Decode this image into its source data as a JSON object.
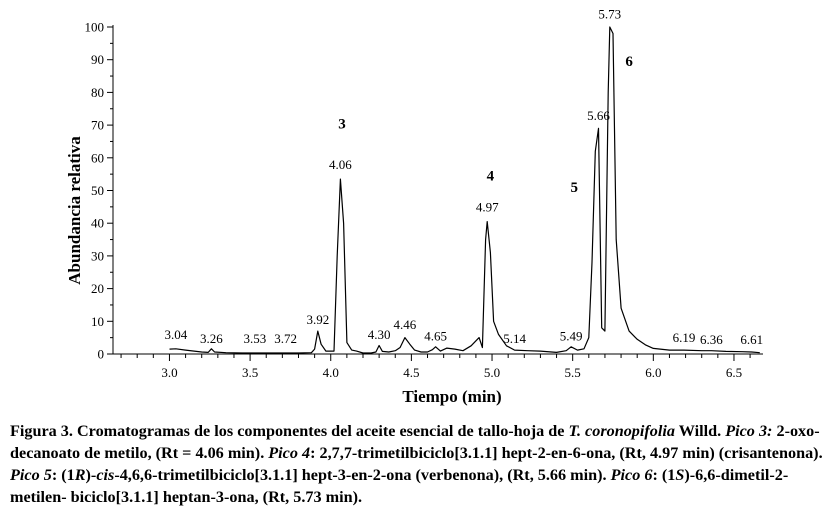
{
  "chart_data": {
    "type": "line",
    "xlabel": "Tiempo (min)",
    "ylabel": "Abundancia relativa",
    "xlim": [
      2.65,
      6.68
    ],
    "ylim": [
      0,
      100
    ],
    "xticks": [
      "3.0",
      "3.5",
      "4.0",
      "4.5",
      "5.0",
      "5.5",
      "6.0",
      "6.5"
    ],
    "yticks": [
      "0",
      "10",
      "20",
      "30",
      "40",
      "50",
      "60",
      "70",
      "80",
      "90",
      "100"
    ],
    "grid": false,
    "series": [
      {
        "x": [
          3.0,
          3.04,
          3.1,
          3.2,
          3.24,
          3.26,
          3.28,
          3.35,
          3.45,
          3.53,
          3.62,
          3.72,
          3.8,
          3.88,
          3.9,
          3.92,
          3.94,
          3.97,
          4.02,
          4.04,
          4.06,
          4.08,
          4.1,
          4.13,
          4.16,
          4.2,
          4.25,
          4.28,
          4.3,
          4.32,
          4.36,
          4.4,
          4.43,
          4.46,
          4.49,
          4.52,
          4.56,
          4.6,
          4.63,
          4.65,
          4.68,
          4.72,
          4.77,
          4.82,
          4.87,
          4.92,
          4.94,
          4.96,
          4.97,
          4.99,
          5.01,
          5.04,
          5.09,
          5.14,
          5.22,
          5.3,
          5.4,
          5.46,
          5.49,
          5.53,
          5.57,
          5.6,
          5.62,
          5.64,
          5.66,
          5.68,
          5.7,
          5.72,
          5.73,
          5.75,
          5.77,
          5.8,
          5.85,
          5.9,
          5.95,
          6.0,
          6.1,
          6.19,
          6.3,
          6.36,
          6.45,
          6.55,
          6.61,
          6.66
        ],
        "y": [
          1.5,
          1.6,
          1.2,
          0.6,
          0.5,
          1.6,
          0.6,
          0.4,
          0.3,
          0.3,
          0.3,
          0.3,
          0.3,
          0.4,
          1.5,
          7.0,
          3.0,
          0.9,
          0.9,
          30.0,
          53.5,
          40.0,
          3.5,
          1.2,
          0.9,
          0.3,
          0.3,
          0.6,
          2.6,
          0.8,
          0.6,
          1.0,
          2.0,
          5.0,
          3.0,
          1.2,
          0.6,
          0.6,
          1.3,
          2.2,
          0.9,
          1.8,
          1.5,
          1.0,
          2.5,
          5.0,
          2.0,
          35.0,
          40.5,
          31.0,
          10.0,
          6.0,
          2.5,
          1.2,
          1.0,
          0.9,
          0.5,
          1.0,
          2.2,
          1.2,
          1.6,
          5.0,
          28.0,
          62.0,
          69.0,
          8.0,
          7.0,
          80.0,
          100.0,
          98.0,
          35.0,
          14.0,
          7.0,
          4.5,
          2.8,
          1.7,
          1.2,
          1.2,
          1.0,
          1.0,
          0.8,
          0.7,
          0.6,
          0.4
        ]
      }
    ],
    "peak_labels": [
      {
        "text": "3.04",
        "x": 3.04,
        "y": 4.0
      },
      {
        "text": "3.26",
        "x": 3.26,
        "y": 2.8
      },
      {
        "text": "3.53",
        "x": 3.53,
        "y": 2.8
      },
      {
        "text": "3.72",
        "x": 3.72,
        "y": 2.8
      },
      {
        "text": "3.92",
        "x": 3.92,
        "y": 8.5
      },
      {
        "text": "4.06",
        "x": 4.06,
        "y": 56.0
      },
      {
        "text": "4.30",
        "x": 4.3,
        "y": 4.0
      },
      {
        "text": "4.46",
        "x": 4.46,
        "y": 7.0
      },
      {
        "text": "4.65",
        "x": 4.65,
        "y": 3.5
      },
      {
        "text": "4.97",
        "x": 4.97,
        "y": 43.0
      },
      {
        "text": "5.14",
        "x": 5.14,
        "y": 2.8
      },
      {
        "text": "5.49",
        "x": 5.49,
        "y": 3.5
      },
      {
        "text": "5.66",
        "x": 5.66,
        "y": 71.0
      },
      {
        "text": "5.73",
        "x": 5.73,
        "y": 102.0
      },
      {
        "text": "6.19",
        "x": 6.19,
        "y": 3.0
      },
      {
        "text": "6.36",
        "x": 6.36,
        "y": 2.5
      },
      {
        "text": "6.61",
        "x": 6.61,
        "y": 2.5
      }
    ],
    "peak_numbers": [
      {
        "text": "3",
        "x": 4.07,
        "y": 69.0
      },
      {
        "text": "4",
        "x": 4.99,
        "y": 53.0
      },
      {
        "text": "5",
        "x": 5.51,
        "y": 49.5
      },
      {
        "text": "6",
        "x": 5.85,
        "y": 88.0
      }
    ],
    "colors": {
      "line": "#000000",
      "axis": "#000000"
    }
  },
  "caption": {
    "fig_title": "Figura 3. Cromatogramas de los componentes del aceite esencial de tallo-hoja de ",
    "species": "T. coronopifolia",
    "author": " Willd.",
    "p3_label": "Pico 3:",
    "p3_text": " 2-oxo-decanoato de metilo, (Rt = 4.06 min). ",
    "p4_label": "Pico 4",
    "p4_text": ": 2,7,7-trimetilbiciclo[3.1.1] hept-2-en-6-ona, (Rt, 4.97 min) (crisantenona). ",
    "p5_label": "Pico 5",
    "p5_text_a": ": (1",
    "p5_r": "R",
    "p5_text_b": ")-",
    "p5_cis": "cis",
    "p5_text_c": "-4,6,6-trimetilbiciclo[3.1.1] hept-3-en-2-ona (verbenona), (Rt, 5.66 min). ",
    "p6_label": "Pico 6",
    "p6_text_a": ": (1",
    "p6_s": "S",
    "p6_text_b": ")-6,6-dimetil-2-metilen- biciclo[3.1.1] heptan-3-ona, (Rt, 5.73 min)."
  }
}
